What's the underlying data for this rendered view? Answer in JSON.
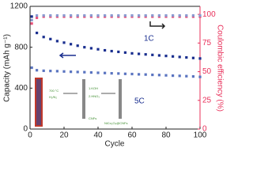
{
  "chart_data": {
    "type": "scatter",
    "x_label": "Cycle",
    "y_label": "Capacity (mAh g⁻¹)",
    "y2_label": "Coulombic efficiency (%)",
    "x": [
      1,
      4,
      8,
      12,
      16,
      20,
      24,
      28,
      32,
      36,
      40,
      44,
      48,
      52,
      56,
      60,
      64,
      68,
      72,
      76,
      80,
      84,
      88,
      92,
      96,
      100
    ],
    "xlim": [
      0,
      100
    ],
    "xticks": [
      0,
      20,
      40,
      60,
      80,
      100
    ],
    "ylim": [
      0,
      1200
    ],
    "yticks": [
      0,
      400,
      800,
      1200
    ],
    "y2lim": [
      0,
      107
    ],
    "y2ticks": [
      0,
      25,
      50,
      75,
      100
    ],
    "series": [
      {
        "color": "#1a2f8f",
        "values": [
          1100,
          940,
          900,
          880,
          860,
          845,
          830,
          815,
          800,
          790,
          780,
          770,
          762,
          755,
          748,
          740,
          735,
          730,
          725,
          720,
          715,
          710,
          705,
          700,
          695,
          690
        ]
      },
      {
        "color": "#5a74c0",
        "values": [
          600,
          575,
          570,
          568,
          566,
          563,
          560,
          558,
          556,
          553,
          550,
          548,
          545,
          543,
          540,
          538,
          535,
          533,
          530,
          528,
          525,
          522,
          520,
          517,
          514,
          510
        ]
      },
      {
        "color": "#e8507a",
        "axis": "y2",
        "values": [
          92,
          97,
          98,
          98,
          98,
          98,
          98,
          98,
          98,
          98,
          98,
          98,
          98,
          98,
          98,
          98,
          98,
          98,
          98,
          98,
          98,
          98,
          98,
          98,
          98,
          98
        ]
      },
      {
        "color": "#8a9ad0",
        "axis": "y2",
        "values": [
          95,
          99,
          99,
          99,
          99,
          99,
          99,
          99,
          99,
          99,
          99,
          99,
          99,
          99,
          99,
          99,
          99,
          99,
          99,
          99,
          99,
          99,
          99,
          99,
          99,
          99
        ]
      }
    ],
    "annotations": [
      "1C",
      "5C",
      "700 °C",
      "H₂/N₂",
      "1.KOH",
      "2.HNO₃",
      "CNFs",
      "NiCo₂O₄@CNFs"
    ]
  }
}
